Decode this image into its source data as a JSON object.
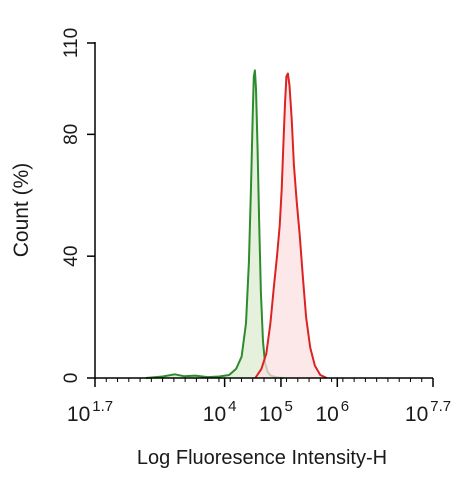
{
  "chart_data": {
    "type": "area",
    "xscale": "log",
    "xlim": [
      50,
      50000000
    ],
    "ylim": [
      0,
      110
    ],
    "grid": false,
    "legend": "none",
    "xlabel": "Log Fluoresence Intensity-H",
    "ylabel": "Count  (%)",
    "x_tick_labels": [
      {
        "base": "10",
        "exp": "1.7",
        "value": 50
      },
      {
        "base": "10",
        "exp": "4",
        "value": 10000
      },
      {
        "base": "10",
        "exp": "5",
        "value": 100000
      },
      {
        "base": "10",
        "exp": "6",
        "value": 1000000
      },
      {
        "base": "10",
        "exp": "7.7",
        "value": 50000000
      }
    ],
    "y_ticks": [
      {
        "label": "0",
        "value": 0
      },
      {
        "label": "40",
        "value": 40
      },
      {
        "label": "80",
        "value": 80
      },
      {
        "label": "110",
        "value": 110
      }
    ],
    "series": [
      {
        "color": "#2e8b2e",
        "fill": "#dcebd2",
        "x": [
          400,
          800,
          1300,
          1900,
          3000,
          5000,
          8000,
          12000,
          16000,
          20000,
          24000,
          27000,
          29500,
          31500,
          33000,
          34500,
          36000,
          38500,
          41000,
          44000,
          48000,
          52000,
          58000,
          66000,
          80000,
          110000
        ],
        "y": [
          0,
          0.5,
          1.2,
          0.6,
          0.8,
          0.3,
          0.5,
          1.0,
          3,
          7,
          18,
          38,
          64,
          86,
          99,
          101,
          95,
          75,
          52,
          28,
          12,
          5,
          2,
          0.8,
          0.3,
          0
        ]
      },
      {
        "color": "#dd2222",
        "fill": "#fbe0e2",
        "x": [
          35000,
          45000,
          55000,
          65000,
          75000,
          85000,
          95000,
          103000,
          110000,
          118000,
          125000,
          133000,
          142000,
          155000,
          170000,
          190000,
          215000,
          245000,
          280000,
          330000,
          400000,
          500000,
          650000
        ],
        "y": [
          0,
          3,
          8,
          18,
          30,
          40,
          50,
          62,
          76,
          90,
          99,
          100,
          96,
          85,
          70,
          58,
          47,
          33,
          20,
          10,
          4,
          1,
          0
        ]
      }
    ]
  }
}
